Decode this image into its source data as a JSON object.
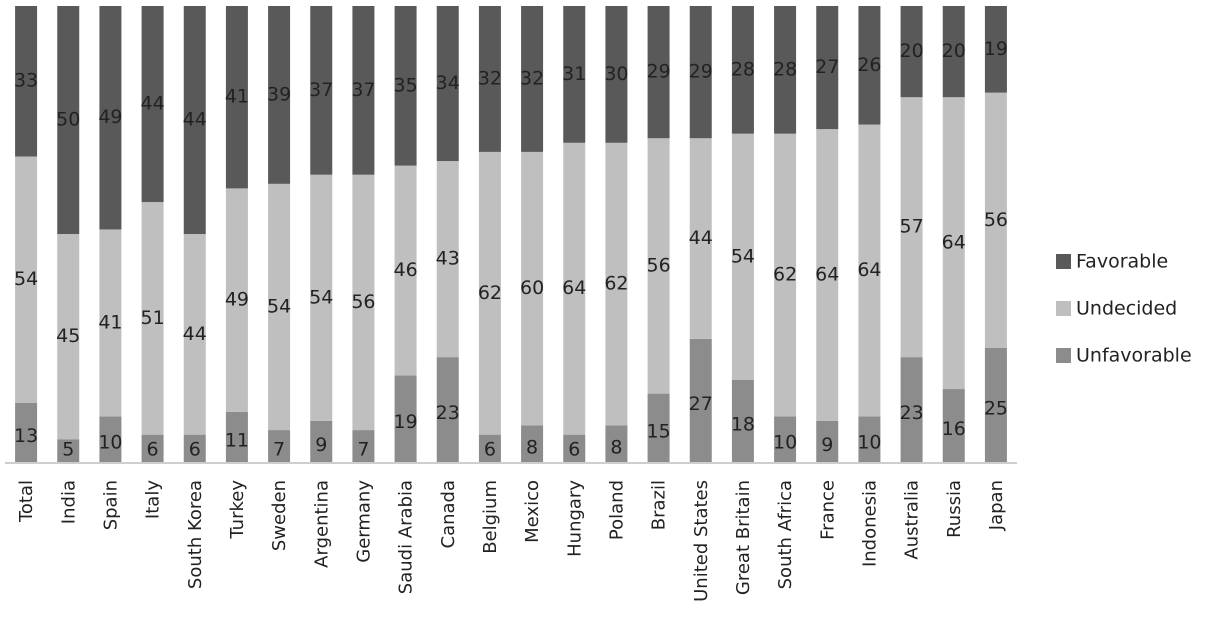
{
  "chart_data": {
    "type": "bar",
    "stacked": true,
    "orientation": "vertical",
    "categories": [
      "Total",
      "India",
      "Spain",
      "Italy",
      "South Korea",
      "Turkey",
      "Sweden",
      "Argentina",
      "Germany",
      "Saudi Arabia",
      "Canada",
      "Belgium",
      "Mexico",
      "Hungary",
      "Poland",
      "Brazil",
      "United States",
      "Great Britain",
      "South Africa",
      "France",
      "Indonesia",
      "Australia",
      "Russia",
      "Japan"
    ],
    "series": [
      {
        "name": "Unfavorable",
        "color": "#8c8c8c",
        "values": [
          13,
          5,
          10,
          6,
          6,
          11,
          7,
          9,
          7,
          19,
          23,
          6,
          8,
          6,
          8,
          15,
          27,
          18,
          10,
          9,
          10,
          23,
          16,
          25
        ]
      },
      {
        "name": "Undecided",
        "color": "#bfbfbf",
        "values": [
          54,
          45,
          41,
          51,
          44,
          49,
          54,
          54,
          56,
          46,
          43,
          62,
          60,
          64,
          62,
          56,
          44,
          54,
          62,
          64,
          64,
          57,
          64,
          56
        ]
      },
      {
        "name": "Favorable",
        "color": "#595959",
        "values": [
          33,
          50,
          49,
          44,
          44,
          41,
          39,
          37,
          37,
          35,
          34,
          32,
          32,
          31,
          30,
          29,
          29,
          28,
          28,
          27,
          26,
          20,
          20,
          19
        ]
      }
    ],
    "legend_order": [
      "Favorable",
      "Undecided",
      "Unfavorable"
    ],
    "legend_position": "right",
    "title": "",
    "xlabel": "",
    "ylabel": "",
    "ylim": [
      0,
      100
    ],
    "grid": false
  }
}
